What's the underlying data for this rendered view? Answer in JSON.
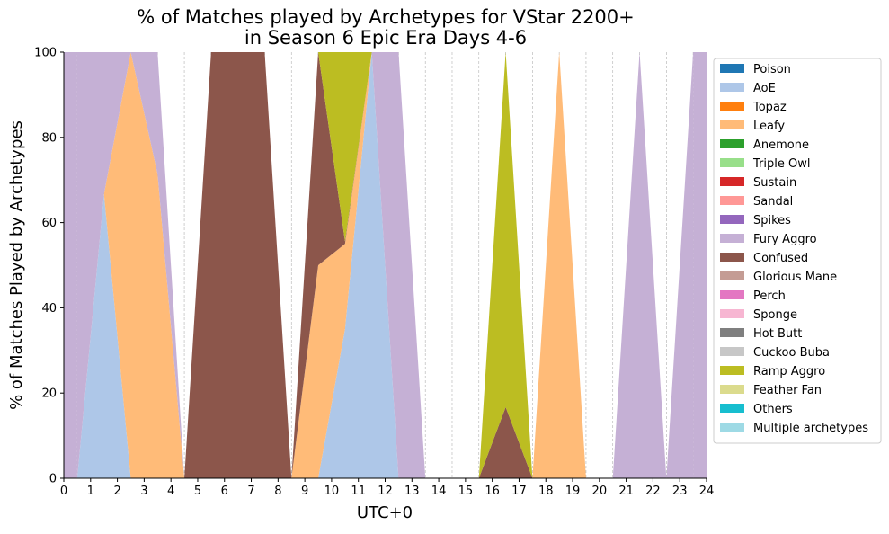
{
  "chart_data": {
    "type": "area",
    "title_lines": [
      "% of Matches played by Archetypes for VStar 2200+",
      "in Season 6 Epic Era Days 4-6"
    ],
    "xlabel": "UTC+0",
    "ylabel": "% of Matches Played by Archetypes",
    "xlim": [
      0,
      24
    ],
    "ylim": [
      0,
      100
    ],
    "x_ticks": [
      0,
      1,
      2,
      3,
      4,
      5,
      6,
      7,
      8,
      9,
      10,
      11,
      12,
      13,
      14,
      15,
      16,
      17,
      18,
      19,
      20,
      21,
      22,
      23,
      24
    ],
    "y_ticks": [
      0,
      20,
      40,
      60,
      80,
      100
    ],
    "vertical_grid": true,
    "legend_position": "right",
    "x": [
      0.5,
      1.5,
      2.5,
      3.5,
      4.5,
      5.5,
      6.5,
      7.5,
      8.5,
      9.5,
      10.5,
      11.5,
      12.5,
      13.5,
      14.5,
      15.5,
      16.5,
      17.5,
      18.5,
      19.5,
      20.5,
      21.5,
      22.5,
      23.5
    ],
    "series": [
      {
        "name": "Poison",
        "color": "#1f77b4",
        "values": [
          0,
          0,
          0,
          0,
          0,
          0,
          0,
          0,
          0,
          0,
          0,
          0,
          0,
          0,
          0,
          0,
          0,
          0,
          0,
          0,
          0,
          0,
          0,
          0
        ]
      },
      {
        "name": "AoE",
        "color": "#aec7e8",
        "values": [
          0,
          66.7,
          0,
          0,
          0,
          0,
          0,
          0,
          0,
          0,
          35,
          100,
          0,
          0,
          0,
          0,
          0,
          0,
          0,
          0,
          0,
          0,
          0,
          0
        ]
      },
      {
        "name": "Topaz",
        "color": "#ff7f0e",
        "values": [
          0,
          0,
          0,
          0,
          0,
          0,
          0,
          0,
          0,
          0,
          0,
          0,
          0,
          0,
          0,
          0,
          0,
          0,
          0,
          0,
          0,
          0,
          0,
          0
        ]
      },
      {
        "name": "Leafy",
        "color": "#ffbb78",
        "values": [
          0,
          0,
          100,
          71.4,
          0,
          0,
          0,
          0,
          0,
          50,
          20,
          0,
          0,
          0,
          0,
          0,
          0,
          0,
          100,
          0,
          0,
          0,
          0,
          0
        ]
      },
      {
        "name": "Anemone",
        "color": "#2ca02c",
        "values": [
          0,
          0,
          0,
          0,
          0,
          0,
          0,
          0,
          0,
          0,
          0,
          0,
          0,
          0,
          0,
          0,
          0,
          0,
          0,
          0,
          0,
          0,
          0,
          0
        ]
      },
      {
        "name": "Triple Owl",
        "color": "#98df8a",
        "values": [
          0,
          0,
          0,
          0,
          0,
          0,
          0,
          0,
          0,
          0,
          0,
          0,
          0,
          0,
          0,
          0,
          0,
          0,
          0,
          0,
          0,
          0,
          0,
          0
        ]
      },
      {
        "name": "Sustain",
        "color": "#d62728",
        "values": [
          0,
          0,
          0,
          0,
          0,
          0,
          0,
          0,
          0,
          0,
          0,
          0,
          0,
          0,
          0,
          0,
          0,
          0,
          0,
          0,
          0,
          0,
          0,
          0
        ]
      },
      {
        "name": "Sandal",
        "color": "#ff9896",
        "values": [
          0,
          0,
          0,
          0,
          0,
          0,
          0,
          0,
          0,
          0,
          0,
          0,
          0,
          0,
          0,
          0,
          0,
          0,
          0,
          0,
          0,
          0,
          0,
          0
        ]
      },
      {
        "name": "Spikes",
        "color": "#9467bd",
        "values": [
          0,
          0,
          0,
          0,
          0,
          0,
          0,
          0,
          0,
          0,
          0,
          0,
          0,
          0,
          0,
          0,
          0,
          0,
          0,
          0,
          0,
          0,
          0,
          0
        ]
      },
      {
        "name": "Fury Aggro",
        "color": "#c5b0d5",
        "values": [
          100,
          33.3,
          0,
          28.6,
          0,
          0,
          0,
          0,
          0,
          0,
          0,
          0,
          100,
          0,
          0,
          0,
          0,
          0,
          0,
          0,
          0,
          100,
          0,
          100
        ]
      },
      {
        "name": "Confused",
        "color": "#8c564b",
        "values": [
          0,
          0,
          0,
          0,
          0,
          100,
          100,
          100,
          0,
          50,
          0.6,
          0,
          0,
          0,
          0,
          0,
          16.7,
          0,
          0,
          0,
          0,
          0,
          0,
          0
        ]
      },
      {
        "name": "Glorious Mane",
        "color": "#c49c94",
        "values": [
          0,
          0,
          0,
          0,
          0,
          0,
          0,
          0,
          0,
          0,
          0,
          0,
          0,
          0,
          0,
          0,
          0,
          0,
          0,
          0,
          0,
          0,
          0,
          0
        ]
      },
      {
        "name": "Perch",
        "color": "#e377c2",
        "values": [
          0,
          0,
          0,
          0,
          0,
          0,
          0,
          0,
          0,
          0,
          0,
          0,
          0,
          0,
          0,
          0,
          0,
          0,
          0,
          0,
          0,
          0,
          0,
          0
        ]
      },
      {
        "name": "Sponge",
        "color": "#f7b6d2",
        "values": [
          0,
          0,
          0,
          0,
          0,
          0,
          0,
          0,
          0,
          0,
          0,
          0,
          0,
          0,
          0,
          0,
          0,
          0,
          0,
          0,
          0,
          0,
          0,
          0
        ]
      },
      {
        "name": "Hot Butt",
        "color": "#7f7f7f",
        "values": [
          0,
          0,
          0,
          0,
          0,
          0,
          0,
          0,
          0,
          0,
          0,
          0,
          0,
          0,
          0,
          0,
          0,
          0,
          0,
          0,
          0,
          0,
          0,
          0
        ]
      },
      {
        "name": "Cuckoo Buba",
        "color": "#c7c7c7",
        "values": [
          0,
          0,
          0,
          0,
          0,
          0,
          0,
          0,
          0,
          0,
          0,
          0,
          0,
          0,
          0,
          0,
          0,
          0,
          0,
          0,
          0,
          0,
          0,
          0
        ]
      },
      {
        "name": "Ramp Aggro",
        "color": "#bcbd22",
        "values": [
          0,
          0,
          0,
          0,
          0,
          0,
          0,
          0,
          0,
          0,
          44.4,
          0,
          0,
          0,
          0,
          0,
          83.3,
          0,
          0,
          0,
          0,
          0,
          0,
          0
        ]
      },
      {
        "name": "Feather Fan",
        "color": "#dbdb8d",
        "values": [
          0,
          0,
          0,
          0,
          0,
          0,
          0,
          0,
          0,
          0,
          0,
          0,
          0,
          0,
          0,
          0,
          0,
          0,
          0,
          0,
          0,
          0,
          0,
          0
        ]
      },
      {
        "name": "Others",
        "color": "#17becf",
        "values": [
          0,
          0,
          0,
          0,
          0,
          0,
          0,
          0,
          0,
          0,
          0,
          0,
          0,
          0,
          0,
          0,
          0,
          0,
          0,
          0,
          0,
          0,
          0,
          0
        ]
      },
      {
        "name": "Multiple archetypes",
        "color": "#9edae5",
        "values": [
          0,
          0,
          0,
          0,
          0,
          0,
          0,
          0,
          0,
          0,
          0,
          0,
          0,
          0,
          0,
          0,
          0,
          0,
          0,
          0,
          0,
          0,
          0,
          0
        ]
      }
    ]
  }
}
